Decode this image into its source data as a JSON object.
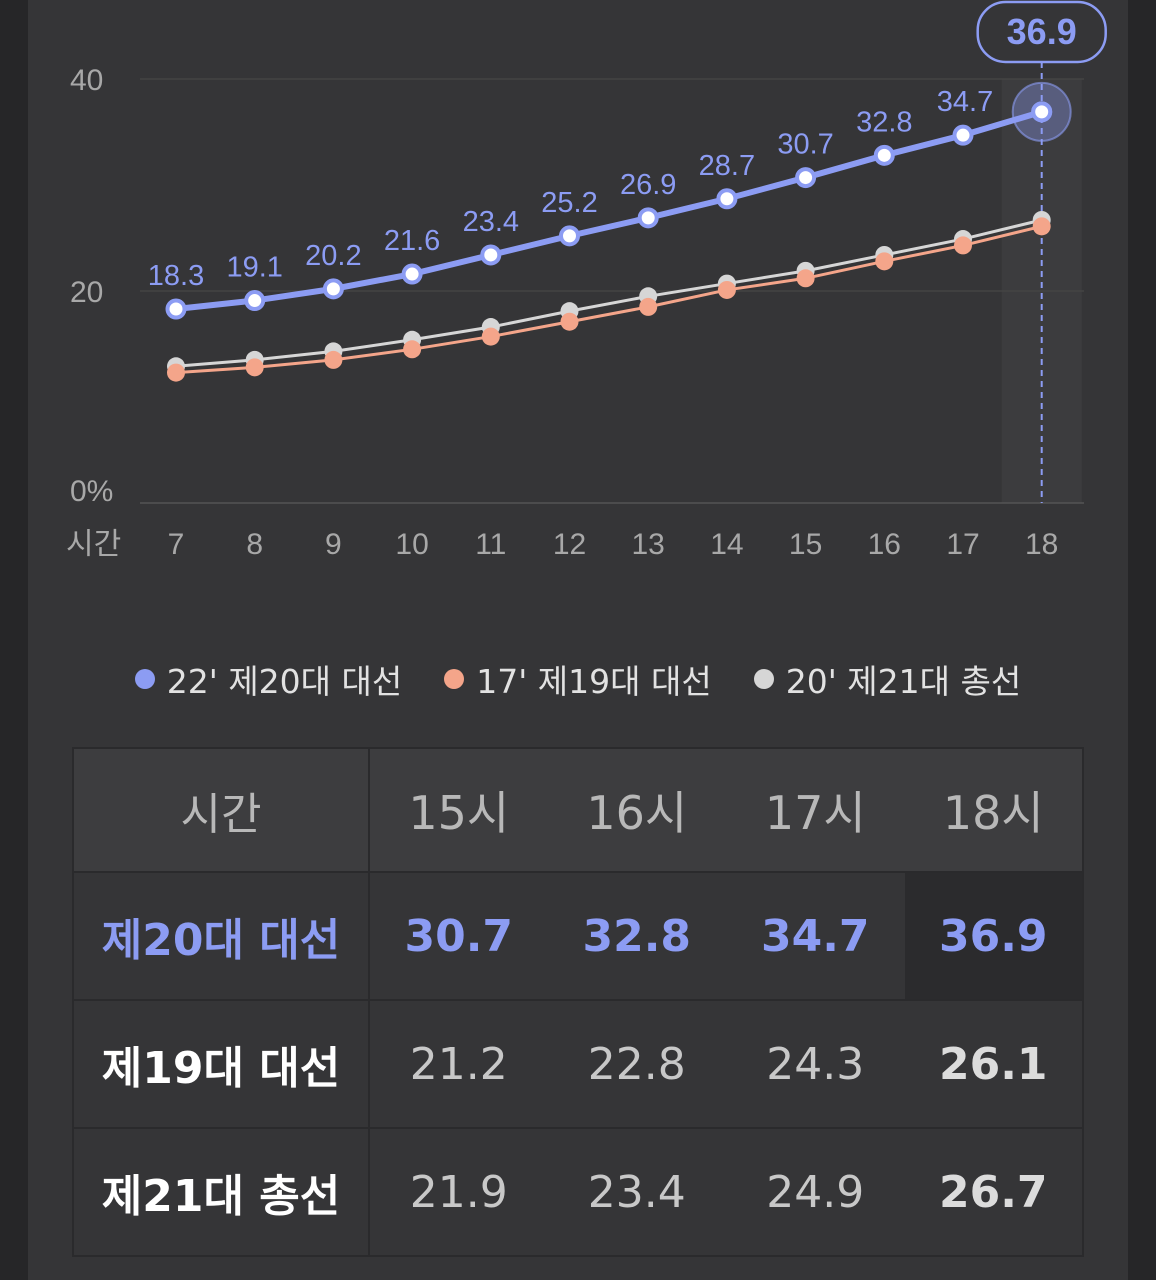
{
  "chart_data": {
    "type": "line",
    "xlabel": "시간",
    "categories": [
      "7",
      "8",
      "9",
      "10",
      "11",
      "12",
      "13",
      "14",
      "15",
      "16",
      "17",
      "18"
    ],
    "ylim": [
      0,
      40
    ],
    "yticks": [
      "0%",
      "20",
      "40"
    ],
    "series": [
      {
        "name": "22' 제20대 대선",
        "color": "#8c9cf3",
        "values": [
          18.3,
          19.1,
          20.2,
          21.6,
          23.4,
          25.2,
          26.9,
          28.7,
          30.7,
          32.8,
          34.7,
          36.9
        ],
        "labels": [
          "18.3",
          "19.1",
          "20.2",
          "21.6",
          "23.4",
          "25.2",
          "26.9",
          "28.7",
          "30.7",
          "32.8",
          "34.7",
          "36.9"
        ]
      },
      {
        "name": "17' 제19대 대선",
        "color": "#f4a58a",
        "values": [
          12.3,
          12.8,
          13.5,
          14.5,
          15.7,
          17.1,
          18.5,
          20.1,
          21.2,
          22.8,
          24.3,
          26.1
        ]
      },
      {
        "name": "20' 제21대 총선",
        "color": "#d6d6d6",
        "values": [
          12.9,
          13.5,
          14.3,
          15.4,
          16.6,
          18.1,
          19.5,
          20.7,
          21.9,
          23.4,
          24.9,
          26.7
        ]
      }
    ],
    "highlight": {
      "category": "18",
      "value": "36.9"
    }
  },
  "table": {
    "header": [
      "시간",
      "15시",
      "16시",
      "17시",
      "18시"
    ],
    "rows": [
      {
        "name": "제20대 대선",
        "values": [
          "30.7",
          "32.8",
          "34.7",
          "36.9"
        ]
      },
      {
        "name": "제19대 대선",
        "values": [
          "21.2",
          "22.8",
          "24.3",
          "26.1"
        ]
      },
      {
        "name": "제21대 총선",
        "values": [
          "21.9",
          "23.4",
          "24.9",
          "26.7"
        ]
      }
    ]
  }
}
